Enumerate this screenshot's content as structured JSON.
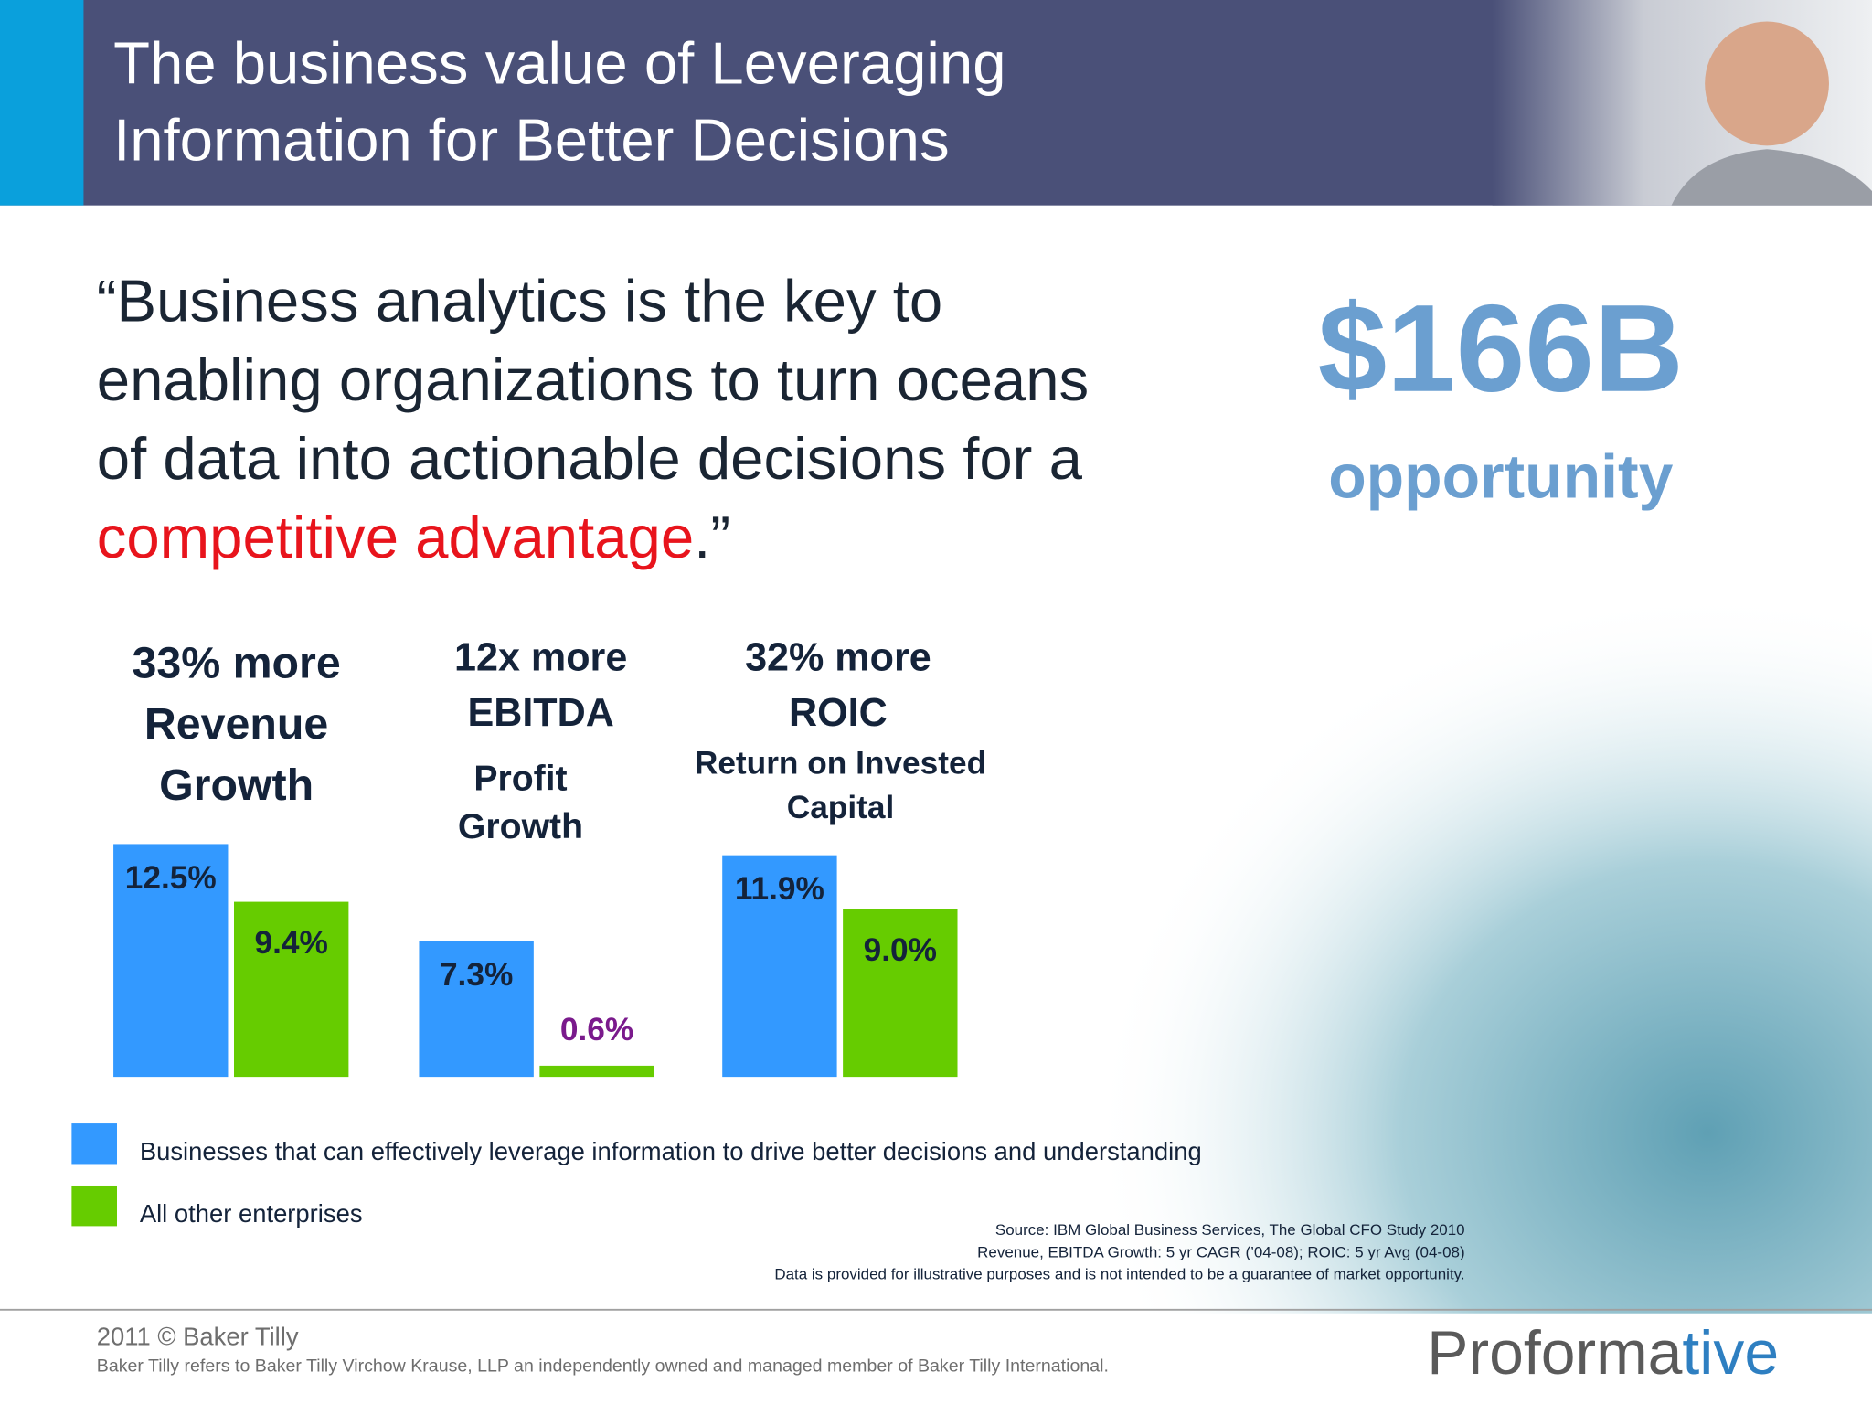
{
  "header": {
    "title_lines": [
      "The business value of Leveraging",
      "Information for Better Decisions"
    ]
  },
  "quote": {
    "lines": [
      "“Business analytics is the key to",
      "enabling organizations to turn oceans",
      "of data into actionable decisions for a"
    ],
    "highlight": "competitive advantage",
    "end": ".”"
  },
  "callout": {
    "value": "$166B",
    "label": "opportunity"
  },
  "chart_data": {
    "type": "bar",
    "categories": [
      [
        "33% more",
        "Revenue",
        "Growth"
      ],
      [
        "12x more",
        "EBITDA"
      ],
      [
        "32% more",
        "ROIC"
      ]
    ],
    "subtitles": [
      null,
      [
        "Profit",
        "Growth"
      ],
      [
        "Return on Invested",
        "Capital"
      ]
    ],
    "series": [
      {
        "name": "Businesses that can effectively leverage information to drive better decisions and understanding",
        "color": "#3399ff",
        "values": [
          12.5,
          7.3,
          11.9
        ],
        "value_labels": [
          "12.5%",
          "7.3%",
          "11.9%"
        ]
      },
      {
        "name": "All other enterprises",
        "color": "#66cc00",
        "values": [
          9.4,
          0.6,
          9.0
        ],
        "value_labels": [
          "9.4%",
          "0.6%",
          "9.0%"
        ]
      }
    ]
  },
  "source": [
    "Source: IBM Global Business Services, The Global CFO Study 2010",
    "Revenue, EBITDA Growth: 5 yr CAGR (’04-08); ROIC: 5 yr Avg (04-08)",
    "Data is provided for illustrative purposes and is not intended to be a guarantee of market opportunity."
  ],
  "footer": {
    "copyright": "2011 © Baker Tilly",
    "disclaimer": "Baker Tilly refers to Baker Tilly Virchow Krause, LLP an independently owned and managed member of Baker Tilly International.",
    "logo": [
      "Proforma",
      "tive"
    ]
  }
}
